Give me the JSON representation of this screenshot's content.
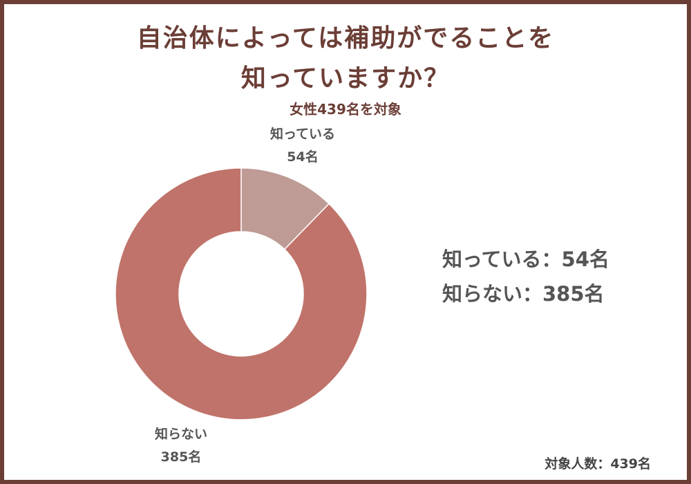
{
  "title_line1": "自治体によっては補助がでることを",
  "title_line2": "知っていますか？",
  "subtitle": "女性439名を対象",
  "legend": [
    {
      "label": "知っている：54名"
    },
    {
      "label": "知らない：385名"
    }
  ],
  "footer": "対象人数：439名",
  "colors": {
    "frame": "#6b3e36",
    "title": "#6b3e36",
    "know": "#be9b95",
    "dont_know": "#c0736a",
    "label_text": "#555555"
  },
  "chart_data": {
    "type": "pie",
    "donut": true,
    "title": "自治体によっては補助がでることを知っていますか？",
    "subtitle": "女性439名を対象",
    "total": 439,
    "slices": [
      {
        "label": "知っている",
        "value": 54,
        "value_label": "54名",
        "color": "#be9b95"
      },
      {
        "label": "知らない",
        "value": 385,
        "value_label": "385名",
        "color": "#c0736a"
      }
    ]
  }
}
